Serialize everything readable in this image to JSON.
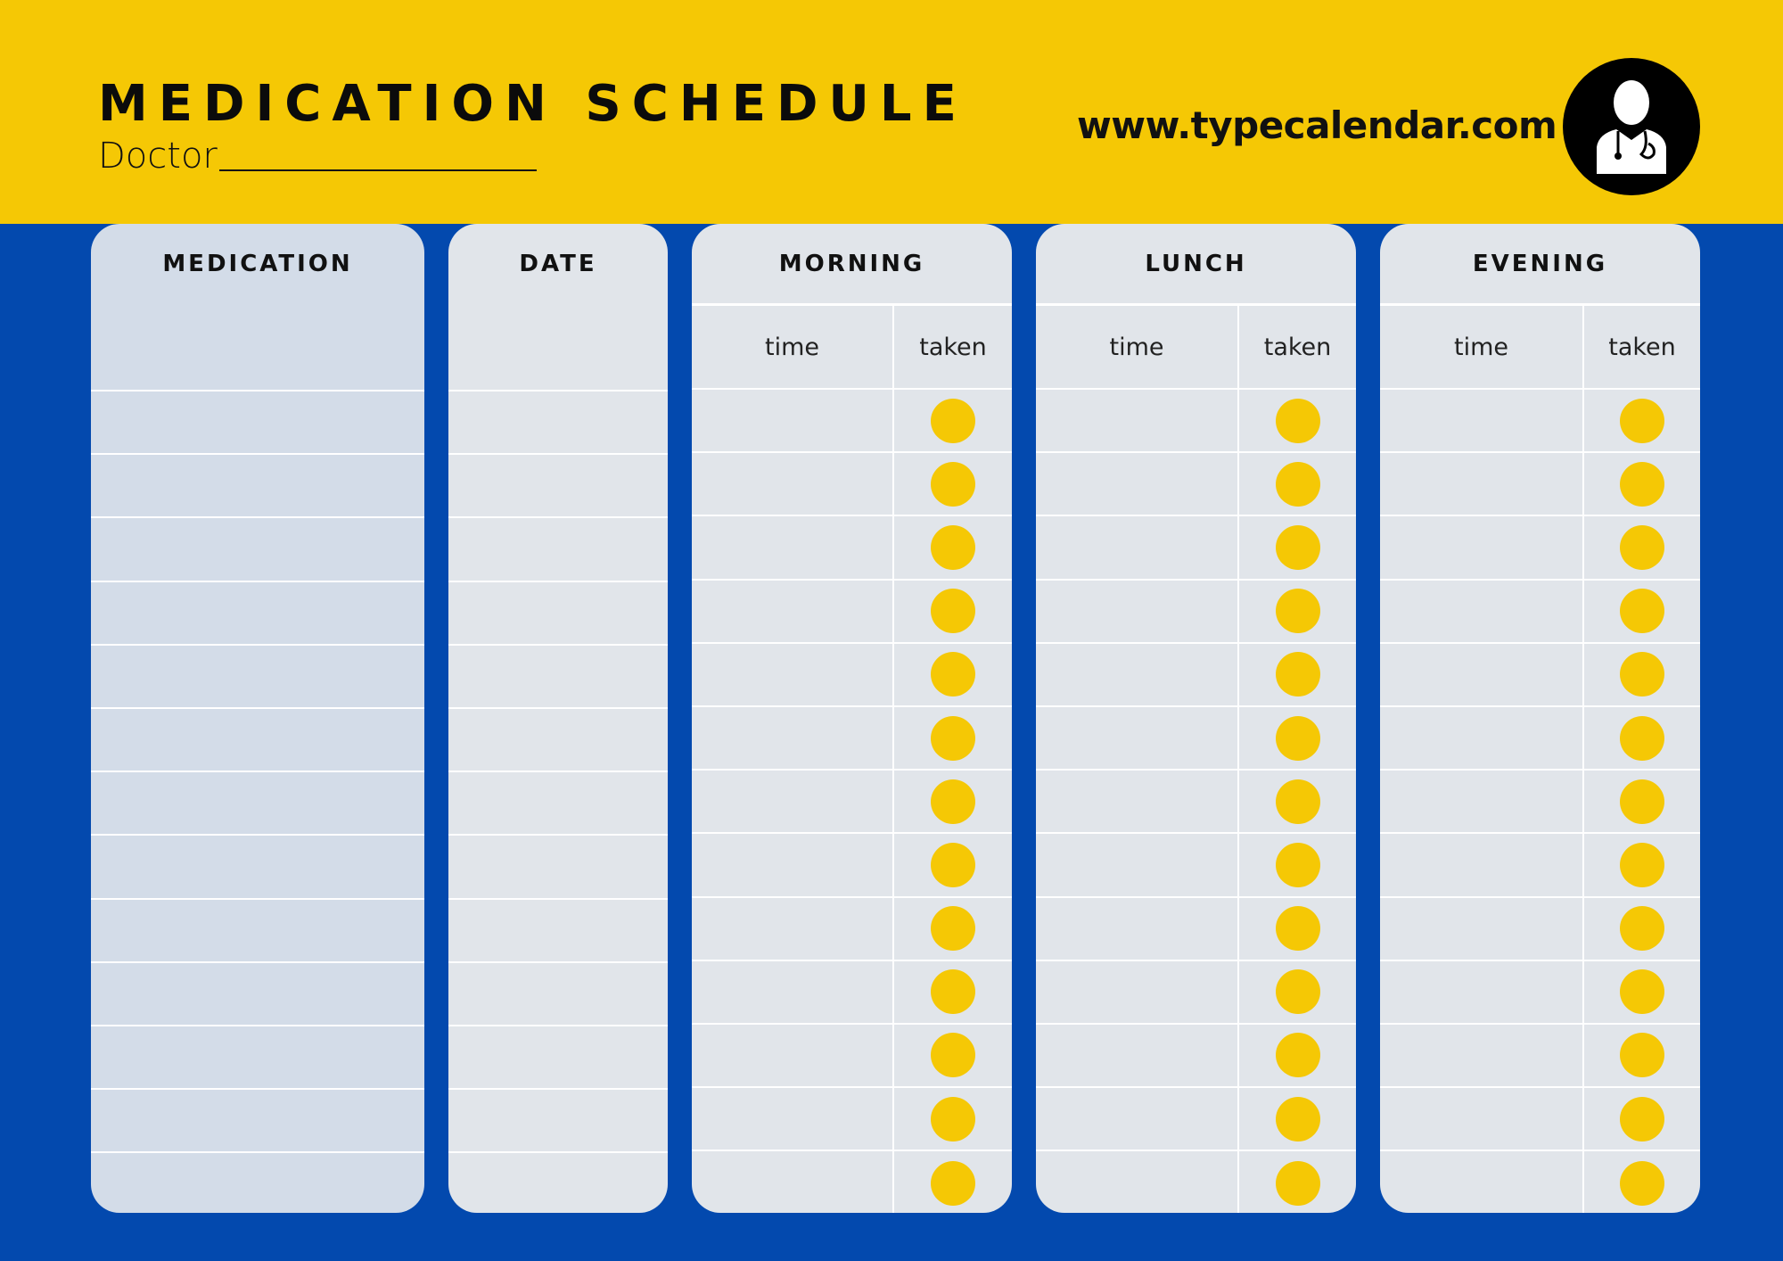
{
  "header": {
    "title": "MEDICATION SCHEDULE",
    "doctor_label": "Doctor",
    "url": "www.typecalendar.com",
    "logo_icon": "doctor-icon"
  },
  "colors": {
    "header_bg": "#F5C805",
    "page_bg": "#0349AE",
    "column_bg": "#E1E5EA",
    "medication_column_bg": "#D3DCE8",
    "dot": "#F5C805"
  },
  "columns": {
    "medication": "MEDICATION",
    "date": "DATE"
  },
  "periods": [
    {
      "label": "MORNING",
      "time": "time",
      "taken": "taken"
    },
    {
      "label": "LUNCH",
      "time": "time",
      "taken": "taken"
    },
    {
      "label": "EVENING",
      "time": "time",
      "taken": "taken"
    }
  ],
  "row_count": 13
}
